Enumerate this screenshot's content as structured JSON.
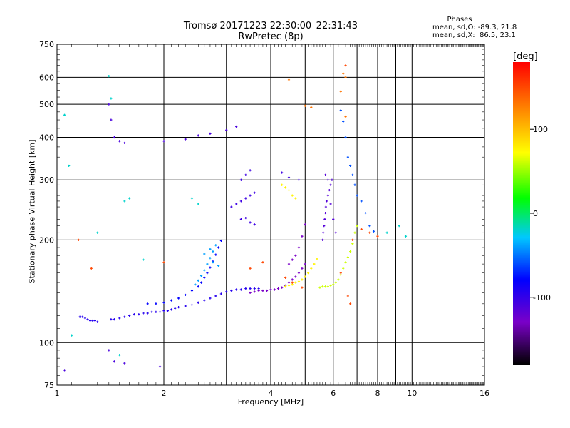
{
  "header": {
    "title_line1": "Tromsø 20171223 22:30:00–22:31:43",
    "title_line2": "RwPretec (8p)"
  },
  "phases_box": {
    "title": "Phases",
    "line1": "mean, sd,O: -89.3, 21.8",
    "line2": "mean, sd,X:  86.5, 23.1"
  },
  "colorbar": {
    "label": "[deg]",
    "ticks": [
      {
        "value": 100,
        "label": "100"
      },
      {
        "value": 0,
        "label": "0"
      },
      {
        "value": -100,
        "label": "-100"
      }
    ],
    "range": [
      -180,
      180
    ]
  },
  "chart_data": {
    "type": "scatter",
    "title": "Tromsø 20171223 22:30:00–22:31:43",
    "subtitle": "RwPretec (8p)",
    "xlabel": "Frequency [MHz]",
    "ylabel": "Stationary phase Virtual Height [km]",
    "x_scale": "log",
    "y_scale": "log",
    "xlim": [
      1,
      16
    ],
    "ylim": [
      75,
      750
    ],
    "x_ticks": [
      1,
      2,
      4,
      6,
      8,
      10,
      16
    ],
    "x_minor_ticks": [
      3,
      5,
      7,
      9
    ],
    "y_ticks": [
      75,
      100,
      200,
      300,
      400,
      500,
      600,
      750
    ],
    "grid": true,
    "color_scale": "phase [deg], -180 to 180, rainbow",
    "series": [
      {
        "color_phase": -95,
        "points": [
          [
            1.16,
            119
          ],
          [
            1.18,
            119
          ],
          [
            1.2,
            118
          ],
          [
            1.22,
            117
          ],
          [
            1.24,
            116
          ],
          [
            1.26,
            116
          ],
          [
            1.28,
            116
          ],
          [
            1.3,
            115
          ],
          [
            1.42,
            117
          ],
          [
            1.45,
            117
          ],
          [
            1.5,
            118
          ],
          [
            1.55,
            119
          ],
          [
            1.6,
            120
          ],
          [
            1.65,
            121
          ],
          [
            1.7,
            121
          ],
          [
            1.75,
            122
          ],
          [
            1.8,
            122
          ],
          [
            1.85,
            123
          ],
          [
            1.9,
            123
          ],
          [
            1.95,
            123
          ],
          [
            2.0,
            124
          ],
          [
            2.05,
            124
          ],
          [
            2.1,
            125
          ],
          [
            2.15,
            126
          ],
          [
            2.2,
            127
          ],
          [
            2.3,
            128
          ],
          [
            2.4,
            129
          ],
          [
            2.5,
            131
          ],
          [
            2.6,
            133
          ],
          [
            2.7,
            135
          ],
          [
            2.8,
            137
          ],
          [
            2.9,
            139
          ],
          [
            3.0,
            141
          ],
          [
            3.1,
            142
          ],
          [
            3.2,
            143
          ],
          [
            3.3,
            143
          ],
          [
            3.4,
            144
          ],
          [
            3.5,
            144
          ],
          [
            3.6,
            144
          ],
          [
            3.7,
            144
          ]
        ]
      },
      {
        "color_phase": -80,
        "points": [
          [
            1.8,
            130
          ],
          [
            1.9,
            130
          ],
          [
            2.0,
            131
          ],
          [
            2.1,
            133
          ],
          [
            2.2,
            135
          ],
          [
            2.3,
            138
          ],
          [
            2.4,
            142
          ],
          [
            2.5,
            146
          ],
          [
            2.55,
            150
          ],
          [
            2.6,
            155
          ],
          [
            2.65,
            160
          ],
          [
            2.7,
            166
          ],
          [
            2.75,
            173
          ],
          [
            2.8,
            181
          ],
          [
            2.85,
            190
          ],
          [
            2.9,
            199
          ]
        ]
      },
      {
        "color_phase": -40,
        "points": [
          [
            2.45,
            148
          ],
          [
            2.5,
            152
          ],
          [
            2.55,
            157
          ],
          [
            2.6,
            163
          ],
          [
            2.65,
            170
          ],
          [
            2.7,
            177
          ],
          [
            2.75,
            185
          ],
          [
            2.8,
            193
          ],
          [
            2.6,
            182
          ],
          [
            2.7,
            188
          ],
          [
            2.75,
            172
          ],
          [
            2.85,
            168
          ]
        ]
      },
      {
        "color_phase": -130,
        "points": [
          [
            3.5,
            140
          ],
          [
            3.6,
            141
          ],
          [
            3.7,
            142
          ],
          [
            3.8,
            142
          ],
          [
            3.9,
            142
          ],
          [
            4.0,
            143
          ],
          [
            4.1,
            143
          ],
          [
            4.2,
            144
          ],
          [
            4.3,
            145
          ],
          [
            4.4,
            147
          ],
          [
            4.5,
            150
          ],
          [
            4.6,
            153
          ],
          [
            4.7,
            156
          ],
          [
            4.8,
            160
          ],
          [
            4.9,
            165
          ],
          [
            5.0,
            170
          ],
          [
            4.5,
            170
          ],
          [
            4.6,
            175
          ],
          [
            4.7,
            180
          ],
          [
            4.8,
            190
          ],
          [
            4.9,
            205
          ],
          [
            5.0,
            222
          ]
        ]
      },
      {
        "color_phase": -115,
        "points": [
          [
            5.6,
            200
          ],
          [
            5.62,
            210
          ],
          [
            5.65,
            220
          ],
          [
            5.68,
            230
          ],
          [
            5.7,
            240
          ],
          [
            5.72,
            250
          ],
          [
            5.75,
            260
          ],
          [
            5.8,
            270
          ],
          [
            5.85,
            280
          ],
          [
            5.9,
            290
          ],
          [
            5.95,
            300
          ],
          [
            5.7,
            310
          ],
          [
            5.8,
            300
          ],
          [
            5.9,
            255
          ],
          [
            6.0,
            230
          ],
          [
            6.1,
            210
          ]
        ]
      },
      {
        "color_phase": 75,
        "points": [
          [
            4.4,
            146
          ],
          [
            4.5,
            147
          ],
          [
            4.6,
            148
          ],
          [
            4.7,
            150
          ],
          [
            4.8,
            151
          ],
          [
            4.9,
            153
          ],
          [
            5.0,
            156
          ],
          [
            5.1,
            160
          ],
          [
            5.2,
            165
          ],
          [
            5.3,
            170
          ],
          [
            5.4,
            176
          ],
          [
            4.3,
            290
          ],
          [
            4.4,
            285
          ],
          [
            4.5,
            280
          ],
          [
            4.6,
            270
          ],
          [
            4.7,
            265
          ]
        ]
      },
      {
        "color_phase": 60,
        "points": [
          [
            5.5,
            145
          ],
          [
            5.6,
            146
          ],
          [
            5.7,
            146
          ],
          [
            5.8,
            146
          ],
          [
            5.9,
            147
          ],
          [
            6.0,
            148
          ],
          [
            6.1,
            150
          ],
          [
            6.2,
            153
          ],
          [
            6.3,
            158
          ],
          [
            6.4,
            165
          ],
          [
            6.5,
            172
          ],
          [
            6.6,
            178
          ],
          [
            6.7,
            185
          ],
          [
            6.8,
            195
          ],
          [
            6.9,
            210
          ],
          [
            7.0,
            220
          ]
        ]
      },
      {
        "color_phase": -105,
        "points": [
          [
            3.1,
            250
          ],
          [
            3.2,
            255
          ],
          [
            3.3,
            260
          ],
          [
            3.4,
            265
          ],
          [
            3.5,
            270
          ],
          [
            3.6,
            275
          ],
          [
            3.3,
            230
          ],
          [
            3.4,
            232
          ],
          [
            3.5,
            225
          ],
          [
            3.6,
            222
          ],
          [
            3.3,
            300
          ],
          [
            3.4,
            310
          ],
          [
            3.5,
            320
          ],
          [
            4.3,
            315
          ],
          [
            4.5,
            305
          ],
          [
            4.8,
            300
          ]
        ]
      },
      {
        "color_phase": -20,
        "points": [
          [
            1.05,
            465
          ],
          [
            1.08,
            330
          ],
          [
            1.1,
            105
          ],
          [
            1.4,
            605
          ],
          [
            1.42,
            520
          ],
          [
            1.55,
            260
          ],
          [
            1.6,
            265
          ],
          [
            1.3,
            210
          ],
          [
            1.75,
            175
          ],
          [
            2.4,
            265
          ],
          [
            2.5,
            255
          ],
          [
            8.5,
            210
          ],
          [
            9.2,
            220
          ],
          [
            9.6,
            205
          ],
          [
            1.5,
            92
          ]
        ]
      },
      {
        "color_phase": -110,
        "points": [
          [
            1.05,
            83
          ],
          [
            1.4,
            95
          ],
          [
            1.45,
            88
          ],
          [
            1.55,
            87
          ],
          [
            1.95,
            85
          ],
          [
            1.4,
            500
          ],
          [
            1.42,
            450
          ],
          [
            1.45,
            400
          ],
          [
            1.5,
            390
          ],
          [
            1.55,
            385
          ],
          [
            2.0,
            390
          ],
          [
            2.3,
            395
          ],
          [
            2.5,
            405
          ],
          [
            2.7,
            410
          ],
          [
            3.0,
            420
          ],
          [
            3.2,
            430
          ]
        ]
      },
      {
        "color_phase": 150,
        "points": [
          [
            1.15,
            200
          ],
          [
            1.25,
            165
          ],
          [
            2.0,
            172
          ],
          [
            3.5,
            165
          ],
          [
            3.8,
            172
          ],
          [
            4.4,
            155
          ],
          [
            4.6,
            150
          ],
          [
            4.9,
            145
          ],
          [
            6.3,
            160
          ],
          [
            6.5,
            650
          ],
          [
            6.8,
            200
          ],
          [
            6.6,
            137
          ],
          [
            6.7,
            130
          ],
          [
            7.2,
            215
          ],
          [
            7.6,
            210
          ],
          [
            8.0,
            205
          ]
        ]
      },
      {
        "color_phase": -60,
        "points": [
          [
            6.3,
            480
          ],
          [
            6.4,
            445
          ],
          [
            6.5,
            400
          ],
          [
            6.6,
            350
          ],
          [
            6.7,
            330
          ],
          [
            6.8,
            310
          ],
          [
            6.9,
            290
          ],
          [
            7.0,
            270
          ],
          [
            7.2,
            260
          ],
          [
            7.4,
            240
          ],
          [
            7.6,
            220
          ],
          [
            7.8,
            212
          ]
        ]
      },
      {
        "color_phase": 130,
        "points": [
          [
            6.4,
            615
          ],
          [
            6.5,
            600
          ],
          [
            4.5,
            590
          ],
          [
            5.0,
            495
          ],
          [
            5.2,
            490
          ],
          [
            6.3,
            545
          ],
          [
            6.5,
            460
          ]
        ]
      }
    ]
  }
}
